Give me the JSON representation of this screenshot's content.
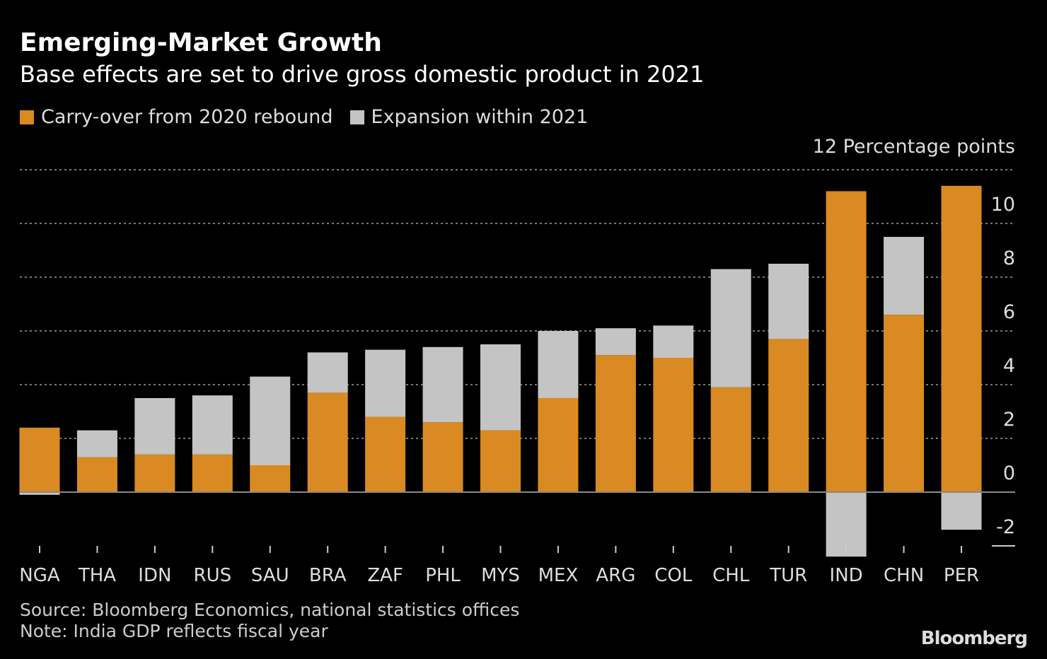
{
  "colors": {
    "carry": "#d98a22",
    "expansion": "#c4c4c4",
    "grid": "#777777"
  },
  "chart_data": {
    "type": "bar",
    "stacked": true,
    "title": "Emerging-Market Growth",
    "subtitle": "Base effects are set to drive gross domestic product in 2021",
    "ylabel": "Percentage points",
    "ylim": [
      -2,
      12
    ],
    "yticks": [
      "12",
      "10",
      "8",
      "6",
      "4",
      "2",
      "0",
      "-2"
    ],
    "grid": true,
    "legend_placement": "top-left",
    "categories": [
      "NGA",
      "THA",
      "IDN",
      "RUS",
      "SAU",
      "BRA",
      "ZAF",
      "PHL",
      "MYS",
      "MEX",
      "ARG",
      "COL",
      "CHL",
      "TUR",
      "IND",
      "CHN",
      "PER"
    ],
    "series": [
      {
        "name": "Carry-over from 2020 rebound",
        "values": [
          2.4,
          1.3,
          1.4,
          1.4,
          1.0,
          3.7,
          2.8,
          2.6,
          2.3,
          3.5,
          5.1,
          5.0,
          3.9,
          5.7,
          11.2,
          6.6,
          11.4
        ]
      },
      {
        "name": "Expansion within 2021",
        "values": [
          -0.1,
          1.0,
          2.1,
          2.2,
          3.3,
          1.5,
          2.5,
          2.8,
          3.2,
          2.5,
          1.0,
          1.2,
          4.4,
          2.8,
          -2.4,
          2.9,
          -1.4
        ]
      }
    ]
  },
  "footer": {
    "source": "Source: Bloomberg Economics, national statistics offices",
    "note": "Note: India GDP reflects fiscal year",
    "logo": "Bloomberg"
  }
}
